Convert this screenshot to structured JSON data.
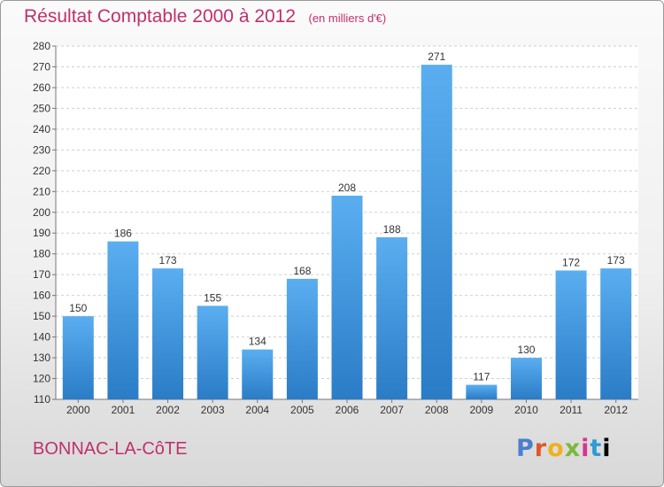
{
  "chart_data": {
    "type": "bar",
    "title": "Résultat Comptable 2000 à 2012",
    "subtitle": "(en milliers d'€)",
    "categories": [
      "2000",
      "2001",
      "2002",
      "2003",
      "2004",
      "2005",
      "2006",
      "2007",
      "2008",
      "2009",
      "2010",
      "2011",
      "2012"
    ],
    "values": [
      150,
      186,
      173,
      155,
      134,
      168,
      208,
      188,
      271,
      117,
      130,
      172,
      173
    ],
    "ylim": [
      110,
      280
    ],
    "yticks": [
      110,
      120,
      130,
      140,
      150,
      160,
      170,
      180,
      190,
      200,
      210,
      220,
      230,
      240,
      250,
      260,
      270,
      280
    ],
    "grid": true,
    "bar_color_light": "#5aaef0",
    "bar_color_dark": "#2a7cc6"
  },
  "footer": {
    "commune": "BONNAC-LA-CôTE",
    "logo": [
      "P",
      "r",
      "o",
      "x",
      "i",
      "t",
      "i"
    ]
  }
}
